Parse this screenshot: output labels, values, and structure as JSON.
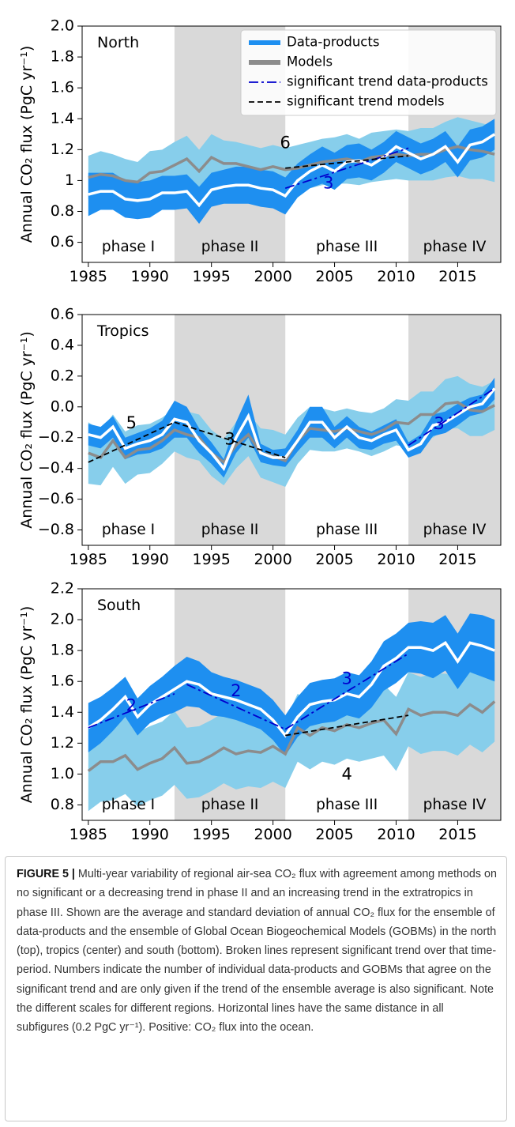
{
  "chart_data": [
    {
      "type": "band-line",
      "title": "North",
      "ylabel": "Annual CO₂ flux (PgC yr⁻¹)",
      "legend": "upper right",
      "x": [
        1985,
        1986,
        1987,
        1988,
        1989,
        1990,
        1991,
        1992,
        1993,
        1994,
        1995,
        1996,
        1997,
        1998,
        1999,
        2000,
        2001,
        2002,
        2003,
        2004,
        2005,
        2006,
        2007,
        2008,
        2009,
        2010,
        2011,
        2012,
        2013,
        2014,
        2015,
        2016,
        2017,
        2018
      ],
      "xlim": [
        1984.5,
        2018.5
      ],
      "xticks": [
        1985,
        1990,
        1995,
        2000,
        2005,
        2010,
        2015
      ],
      "ylim": [
        0.47,
        2.0
      ],
      "yticks": [
        0.6,
        0.8,
        1.0,
        1.2,
        1.4,
        1.6,
        1.8,
        {
          "value": 2.0,
          "label": "2.0"
        }
      ],
      "phases": [
        {
          "label": "phase I",
          "range": [
            1984.5,
            1992
          ],
          "shaded": false
        },
        {
          "label": "phase II",
          "range": [
            1992,
            2001
          ],
          "shaded": true
        },
        {
          "label": "phase III",
          "range": [
            2001,
            2011
          ],
          "shaded": false
        },
        {
          "label": "phase IV",
          "range": [
            2011,
            2018.5
          ],
          "shaded": true
        }
      ],
      "series": [
        {
          "name": "Models",
          "color": "#87ceeb",
          "line_color": "#8c8c8c",
          "values": [
            1.02,
            1.04,
            1.03,
            1.0,
            0.99,
            1.05,
            1.06,
            1.1,
            1.14,
            1.06,
            1.15,
            1.11,
            1.11,
            1.09,
            1.07,
            1.09,
            1.07,
            1.08,
            1.1,
            1.12,
            1.13,
            1.14,
            1.12,
            1.15,
            1.16,
            1.17,
            1.16,
            1.17,
            1.17,
            1.2,
            1.22,
            1.2,
            1.19,
            1.17
          ],
          "std": [
            0.14,
            0.15,
            0.14,
            0.14,
            0.13,
            0.14,
            0.14,
            0.15,
            0.15,
            0.14,
            0.15,
            0.15,
            0.14,
            0.14,
            0.14,
            0.14,
            0.14,
            0.15,
            0.15,
            0.15,
            0.15,
            0.16,
            0.15,
            0.16,
            0.16,
            0.16,
            0.16,
            0.17,
            0.17,
            0.18,
            0.19,
            0.19,
            0.18,
            0.18
          ]
        },
        {
          "name": "Data-products",
          "color": "#1e8ff0",
          "line_color": "#ffffff",
          "values": [
            0.91,
            0.93,
            0.93,
            0.88,
            0.87,
            0.88,
            0.92,
            0.92,
            0.93,
            0.84,
            0.94,
            0.96,
            0.97,
            0.97,
            0.95,
            0.94,
            0.9,
            1.0,
            1.06,
            1.1,
            1.06,
            1.12,
            1.13,
            1.1,
            1.15,
            1.22,
            1.18,
            1.14,
            1.17,
            1.22,
            1.12,
            1.23,
            1.25,
            1.3
          ],
          "std": [
            0.14,
            0.12,
            0.12,
            0.12,
            0.12,
            0.12,
            0.11,
            0.11,
            0.11,
            0.12,
            0.11,
            0.11,
            0.12,
            0.12,
            0.12,
            0.12,
            0.12,
            0.11,
            0.11,
            0.12,
            0.12,
            0.11,
            0.11,
            0.1,
            0.1,
            0.1,
            0.1,
            0.1,
            0.1,
            0.1,
            0.1,
            0.1,
            0.1,
            0.1
          ]
        }
      ],
      "trends": [
        {
          "name": "significant trend data-products",
          "color": "#0000cd",
          "dash": "12 4 3 4",
          "segments": [
            {
              "x": [
                2001,
                2011
              ],
              "values": [
                0.95,
                1.21
              ],
              "label": "3"
            }
          ]
        },
        {
          "name": "significant trend models",
          "color": "#000000",
          "dash": "7 4",
          "segments": [
            {
              "x": [
                2001,
                2011
              ],
              "values": [
                1.08,
                1.16
              ],
              "label": "6"
            }
          ]
        }
      ]
    },
    {
      "type": "band-line",
      "title": "Tropics",
      "ylabel": "Annual CO₂ flux (PgC yr⁻¹)",
      "x": [
        1985,
        1986,
        1987,
        1988,
        1989,
        1990,
        1991,
        1992,
        1993,
        1994,
        1995,
        1996,
        1997,
        1998,
        1999,
        2000,
        2001,
        2002,
        2003,
        2004,
        2005,
        2006,
        2007,
        2008,
        2009,
        2010,
        2011,
        2012,
        2013,
        2014,
        2015,
        2016,
        2017,
        2018
      ],
      "xlim": [
        1984.5,
        2018.5
      ],
      "xticks": [
        1985,
        1990,
        1995,
        2000,
        2005,
        2010,
        2015
      ],
      "ylim": [
        -0.9,
        0.6
      ],
      "yticks": [
        {
          "value": -0.8,
          "label": "−0.8"
        },
        {
          "value": -0.6,
          "label": "−0.6"
        },
        {
          "value": -0.4,
          "label": "−0.4"
        },
        {
          "value": -0.2,
          "label": "−0.2"
        },
        {
          "value": 0,
          "label": "0.0"
        },
        0.2,
        0.4,
        0.6
      ],
      "phases": [
        {
          "label": "phase I",
          "range": [
            1984.5,
            1992
          ],
          "shaded": false
        },
        {
          "label": "phase II",
          "range": [
            1992,
            2001
          ],
          "shaded": true
        },
        {
          "label": "phase III",
          "range": [
            2001,
            2011
          ],
          "shaded": false
        },
        {
          "label": "phase IV",
          "range": [
            2011,
            2018.5
          ],
          "shaded": true
        }
      ],
      "series": [
        {
          "color": "#87ceeb",
          "line_color": "#8c8c8c",
          "values": [
            -0.3,
            -0.33,
            -0.22,
            -0.33,
            -0.28,
            -0.27,
            -0.22,
            -0.15,
            -0.18,
            -0.2,
            -0.3,
            -0.36,
            -0.25,
            -0.18,
            -0.3,
            -0.32,
            -0.35,
            -0.22,
            -0.14,
            -0.15,
            -0.16,
            -0.14,
            -0.16,
            -0.18,
            -0.15,
            -0.1,
            -0.11,
            -0.05,
            -0.05,
            0.02,
            0.03,
            -0.02,
            -0.03,
            0.01
          ],
          "std": [
            0.2,
            0.18,
            0.17,
            0.17,
            0.16,
            0.16,
            0.15,
            0.14,
            0.15,
            0.15,
            0.15,
            0.15,
            0.15,
            0.14,
            0.16,
            0.17,
            0.17,
            0.15,
            0.14,
            0.14,
            0.13,
            0.13,
            0.13,
            0.14,
            0.14,
            0.15,
            0.15,
            0.15,
            0.15,
            0.16,
            0.17,
            0.17,
            0.16,
            0.16
          ]
        },
        {
          "color": "#1e8ff0",
          "line_color": "#ffffff",
          "values": [
            -0.18,
            -0.2,
            -0.13,
            -0.27,
            -0.24,
            -0.22,
            -0.18,
            -0.08,
            -0.1,
            -0.22,
            -0.3,
            -0.4,
            -0.2,
            -0.06,
            -0.3,
            -0.33,
            -0.33,
            -0.22,
            -0.1,
            -0.1,
            -0.2,
            -0.13,
            -0.2,
            -0.22,
            -0.18,
            -0.15,
            -0.28,
            -0.24,
            -0.12,
            -0.1,
            -0.05,
            0.0,
            0.02,
            0.12
          ],
          "std": [
            0.07,
            0.07,
            0.07,
            0.07,
            0.07,
            0.08,
            0.09,
            0.12,
            0.1,
            0.08,
            0.07,
            0.06,
            0.1,
            0.14,
            0.06,
            0.05,
            0.06,
            0.07,
            0.1,
            0.1,
            0.07,
            0.07,
            0.07,
            0.06,
            0.06,
            0.07,
            0.05,
            0.06,
            0.07,
            0.07,
            0.07,
            0.06,
            0.06,
            0.07
          ]
        }
      ],
      "trends": [
        {
          "color": "#0000cd",
          "dash": "12 4 3 4",
          "segments": [
            {
              "x": [
                2011,
                2018
              ],
              "values": [
                -0.25,
                0.12
              ],
              "label": "3"
            }
          ]
        },
        {
          "color": "#000000",
          "dash": "7 4",
          "segments": [
            {
              "x": [
                1985,
                1992
              ],
              "values": [
                -0.36,
                -0.1
              ],
              "label": "5"
            },
            {
              "x": [
                1992,
                2001
              ],
              "values": [
                -0.1,
                -0.33
              ],
              "label": "3"
            }
          ]
        }
      ]
    },
    {
      "type": "band-line",
      "title": "South",
      "ylabel": "Annual CO₂ flux (PgC yr⁻¹)",
      "x": [
        1985,
        1986,
        1987,
        1988,
        1989,
        1990,
        1991,
        1992,
        1993,
        1994,
        1995,
        1996,
        1997,
        1998,
        1999,
        2000,
        2001,
        2002,
        2003,
        2004,
        2005,
        2006,
        2007,
        2008,
        2009,
        2010,
        2011,
        2012,
        2013,
        2014,
        2015,
        2016,
        2017,
        2018
      ],
      "xlim": [
        1984.5,
        2018.5
      ],
      "xticks": [
        1985,
        1990,
        1995,
        2000,
        2005,
        2010,
        2015
      ],
      "ylim": [
        0.7,
        2.2
      ],
      "yticks": [
        0.8,
        {
          "value": 1.0,
          "label": "1.0"
        },
        1.2,
        1.4,
        1.6,
        1.8,
        {
          "value": 2.0,
          "label": "2.0"
        },
        2.2
      ],
      "phases": [
        {
          "label": "phase I",
          "range": [
            1984.5,
            1992
          ],
          "shaded": false
        },
        {
          "label": "phase II",
          "range": [
            1992,
            2001
          ],
          "shaded": true
        },
        {
          "label": "phase III",
          "range": [
            2001,
            2011
          ],
          "shaded": false
        },
        {
          "label": "phase IV",
          "range": [
            2011,
            2018.5
          ],
          "shaded": true
        }
      ],
      "series": [
        {
          "color": "#87ceeb",
          "line_color": "#8c8c8c",
          "values": [
            1.02,
            1.08,
            1.08,
            1.12,
            1.03,
            1.07,
            1.1,
            1.17,
            1.07,
            1.08,
            1.12,
            1.17,
            1.13,
            1.15,
            1.14,
            1.18,
            1.13,
            1.3,
            1.25,
            1.3,
            1.28,
            1.32,
            1.3,
            1.33,
            1.35,
            1.26,
            1.42,
            1.38,
            1.4,
            1.4,
            1.38,
            1.45,
            1.4,
            1.47
          ],
          "std": [
            0.26,
            0.26,
            0.25,
            0.25,
            0.24,
            0.24,
            0.24,
            0.24,
            0.23,
            0.23,
            0.23,
            0.23,
            0.23,
            0.23,
            0.23,
            0.23,
            0.22,
            0.22,
            0.22,
            0.22,
            0.22,
            0.22,
            0.22,
            0.23,
            0.23,
            0.24,
            0.24,
            0.25,
            0.25,
            0.25,
            0.26,
            0.26,
            0.26,
            0.26
          ]
        },
        {
          "color": "#1e8ff0",
          "line_color": "#ffffff",
          "values": [
            1.3,
            1.35,
            1.42,
            1.5,
            1.37,
            1.45,
            1.5,
            1.55,
            1.6,
            1.58,
            1.52,
            1.5,
            1.48,
            1.45,
            1.42,
            1.35,
            1.25,
            1.37,
            1.45,
            1.47,
            1.48,
            1.52,
            1.5,
            1.58,
            1.7,
            1.75,
            1.82,
            1.82,
            1.8,
            1.85,
            1.73,
            1.85,
            1.83,
            1.8
          ],
          "std": [
            0.16,
            0.15,
            0.14,
            0.13,
            0.12,
            0.12,
            0.13,
            0.15,
            0.16,
            0.15,
            0.14,
            0.13,
            0.13,
            0.13,
            0.13,
            0.13,
            0.13,
            0.13,
            0.14,
            0.14,
            0.14,
            0.14,
            0.14,
            0.15,
            0.16,
            0.16,
            0.16,
            0.17,
            0.18,
            0.18,
            0.18,
            0.19,
            0.2,
            0.2
          ]
        }
      ],
      "trends": [
        {
          "color": "#0000cd",
          "dash": "12 4 3 4",
          "segments": [
            {
              "x": [
                1985,
                1992
              ],
              "values": [
                1.3,
                1.52
              ],
              "label": "2"
            },
            {
              "x": [
                1993,
                2001
              ],
              "values": [
                1.58,
                1.29
              ],
              "label": "2"
            },
            {
              "x": [
                2001,
                2011
              ],
              "values": [
                1.29,
                1.78
              ],
              "label": "3"
            }
          ]
        },
        {
          "color": "#000000",
          "dash": "7 4",
          "segments": [
            {
              "x": [
                2001,
                2011
              ],
              "values": [
                1.25,
                1.38
              ],
              "label": "4"
            }
          ]
        }
      ]
    }
  ],
  "caption": {
    "label": "FIGURE 5 |",
    "text": "Multi-year variability of regional air-sea CO₂ flux with agreement among methods on no significant or a decreasing trend in phase II and an increasing trend in the extratropics in phase III. Shown are the average and standard deviation of annual CO₂ flux for the ensemble of data-products and the ensemble of Global Ocean Biogeochemical Models (GOBMs) in the north (top), tropics (center) and south (bottom). Broken lines represent significant trend over that time-period. Numbers indicate the number of individual data-products and GOBMs that agree on the significant trend and are only given if the trend of the ensemble average is also significant. Note the different scales for different regions. Horizontal lines have the same distance in all subfigures (0.2 PgC yr⁻¹). Positive: CO₂ flux into the ocean."
  }
}
